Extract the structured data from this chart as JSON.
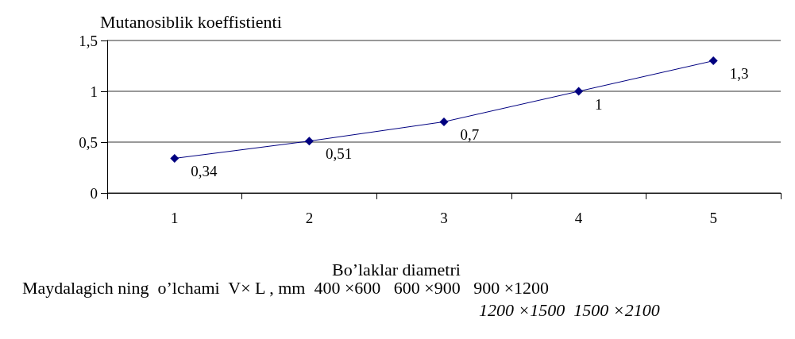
{
  "chart_data": {
    "type": "line",
    "ylabel": "Mutanosiblik koeffistienti",
    "xlabel": "Bo’laklar diametri",
    "categories": [
      "1",
      "2",
      "3",
      "4",
      "5"
    ],
    "series": [
      {
        "color": "#000080",
        "values": [
          0.34,
          0.51,
          0.7,
          1,
          1.3
        ],
        "value_labels": [
          "0,34",
          "0,51",
          "0,7",
          "1",
          "1,3"
        ]
      }
    ],
    "ylim": [
      0,
      1.5
    ],
    "yticks": [
      0,
      {
        "value": 0.5,
        "label": "0,5"
      },
      1,
      {
        "value": 1.5,
        "label": "1,5"
      }
    ],
    "grid": "y",
    "marker": "diamond",
    "line_style": "solid",
    "annotations": [
      "Maydalagich ning  o’lchami  V× L , mm  400 ×600   600 ×900   900 ×1200",
      "1200 ×1500  1500 ×2100"
    ]
  }
}
